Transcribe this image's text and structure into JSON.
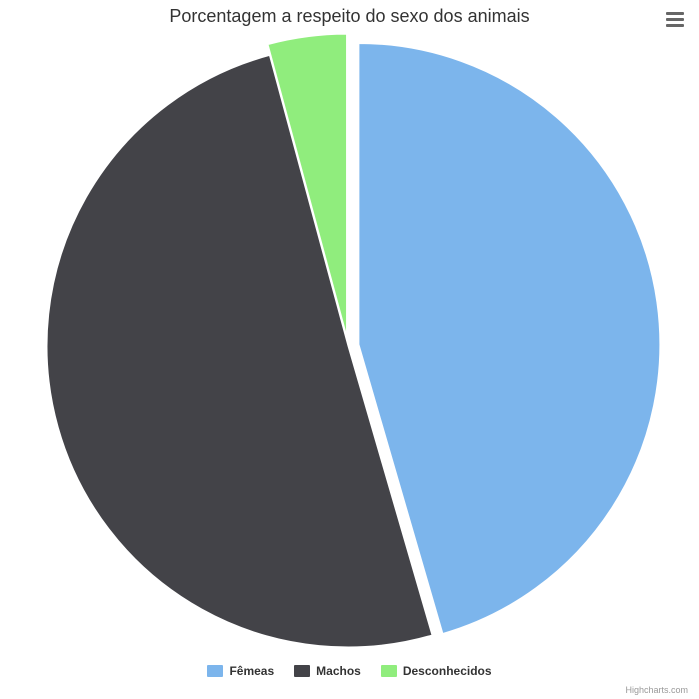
{
  "title": "Porcentagem a respeito do sexo dos animais",
  "credit": "Highcharts.com",
  "menu_icon": "hamburger-menu-icon",
  "chart_data": {
    "type": "pie",
    "title": "Porcentagem a respeito do sexo dos animais",
    "legend_position": "bottom-center",
    "slices": [
      {
        "name": "Fêmeas",
        "value": 45.5,
        "color": "#7cb5ec",
        "sliced": true
      },
      {
        "name": "Machos",
        "value": 50.3,
        "color": "#434348",
        "sliced": false
      },
      {
        "name": "Desconhecidos",
        "value": 4.2,
        "color": "#90ed7d",
        "sliced": true
      }
    ]
  }
}
